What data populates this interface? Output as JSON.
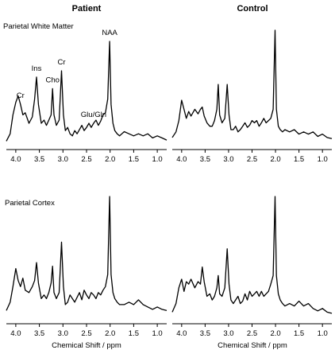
{
  "figure": {
    "column_titles": [
      "Patient",
      "Control"
    ],
    "row_labels": [
      "Parietal White Matter",
      "Parietal Cortex"
    ],
    "xlabel": "Chemical Shift / ppm",
    "ink_color": "#000000"
  },
  "chart_data": [
    {
      "type": "line",
      "panel": "Patient / Parietal White Matter",
      "xlabel": "",
      "xlim": [
        4.2,
        0.8
      ],
      "x_reversed": true,
      "x_ticks": [
        "4.0",
        "3.5",
        "3.0",
        "2.5",
        "2.0",
        "1.5",
        "1.0"
      ],
      "peak_labels": [
        {
          "text": "Cr",
          "x": 3.9
        },
        {
          "text": "Ins",
          "x": 3.56
        },
        {
          "text": "Cho",
          "x": 3.22
        },
        {
          "text": "Cr",
          "x": 3.03
        },
        {
          "text": "Glu/Gln",
          "x": 2.35
        },
        {
          "text": "NAA",
          "x": 2.01
        }
      ],
      "series": [
        {
          "x": [
            4.2,
            4.12,
            4.06,
            4.0,
            3.95,
            3.9,
            3.85,
            3.8,
            3.72,
            3.65,
            3.6,
            3.56,
            3.52,
            3.46,
            3.4,
            3.35,
            3.3,
            3.25,
            3.22,
            3.19,
            3.14,
            3.08,
            3.03,
            2.99,
            2.95,
            2.9,
            2.85,
            2.8,
            2.75,
            2.7,
            2.65,
            2.6,
            2.55,
            2.5,
            2.45,
            2.4,
            2.35,
            2.3,
            2.25,
            2.2,
            2.15,
            2.1,
            2.05,
            2.01,
            1.98,
            1.94,
            1.9,
            1.85,
            1.8,
            1.7,
            1.6,
            1.5,
            1.4,
            1.3,
            1.2,
            1.1,
            1.0,
            0.9,
            0.8
          ],
          "y": [
            0.05,
            0.12,
            0.3,
            0.42,
            0.48,
            0.4,
            0.3,
            0.32,
            0.22,
            0.28,
            0.45,
            0.66,
            0.4,
            0.22,
            0.25,
            0.2,
            0.25,
            0.3,
            0.55,
            0.3,
            0.2,
            0.25,
            0.72,
            0.3,
            0.15,
            0.18,
            0.12,
            0.1,
            0.15,
            0.12,
            0.16,
            0.2,
            0.15,
            0.18,
            0.22,
            0.18,
            0.22,
            0.25,
            0.2,
            0.24,
            0.3,
            0.32,
            0.45,
            1.0,
            0.4,
            0.22,
            0.15,
            0.12,
            0.1,
            0.14,
            0.12,
            0.1,
            0.12,
            0.1,
            0.12,
            0.08,
            0.1,
            0.08,
            0.06
          ]
        }
      ]
    },
    {
      "type": "line",
      "panel": "Control / Parietal White Matter",
      "xlabel": "",
      "xlim": [
        4.2,
        0.8
      ],
      "x_reversed": true,
      "x_ticks": [
        "4.0",
        "3.5",
        "3.0",
        "2.5",
        "2.0",
        "1.5",
        "1.0"
      ],
      "peak_labels": [],
      "series": [
        {
          "x": [
            4.2,
            4.12,
            4.06,
            4.0,
            3.95,
            3.9,
            3.85,
            3.8,
            3.72,
            3.65,
            3.6,
            3.56,
            3.52,
            3.46,
            3.4,
            3.35,
            3.3,
            3.25,
            3.22,
            3.19,
            3.14,
            3.08,
            3.03,
            2.99,
            2.95,
            2.9,
            2.85,
            2.8,
            2.75,
            2.7,
            2.65,
            2.6,
            2.55,
            2.5,
            2.45,
            2.4,
            2.35,
            2.3,
            2.25,
            2.2,
            2.15,
            2.1,
            2.05,
            2.01,
            1.98,
            1.94,
            1.9,
            1.85,
            1.8,
            1.7,
            1.6,
            1.5,
            1.4,
            1.3,
            1.2,
            1.1,
            1.0,
            0.9,
            0.8
          ],
          "y": [
            0.05,
            0.1,
            0.2,
            0.38,
            0.3,
            0.22,
            0.28,
            0.24,
            0.3,
            0.26,
            0.3,
            0.32,
            0.24,
            0.18,
            0.15,
            0.15,
            0.2,
            0.3,
            0.52,
            0.25,
            0.18,
            0.22,
            0.52,
            0.25,
            0.12,
            0.12,
            0.15,
            0.1,
            0.12,
            0.15,
            0.18,
            0.14,
            0.16,
            0.2,
            0.18,
            0.2,
            0.15,
            0.18,
            0.22,
            0.18,
            0.2,
            0.22,
            0.3,
            1.0,
            0.3,
            0.15,
            0.12,
            0.1,
            0.12,
            0.1,
            0.12,
            0.08,
            0.1,
            0.08,
            0.1,
            0.06,
            0.08,
            0.05,
            0.04
          ]
        }
      ]
    },
    {
      "type": "line",
      "panel": "Patient / Parietal Cortex",
      "xlabel": "Chemical Shift / ppm",
      "xlim": [
        4.2,
        0.8
      ],
      "x_reversed": true,
      "x_ticks": [
        "4.0",
        "3.5",
        "3.0",
        "2.5",
        "2.0",
        "1.5",
        "1.0"
      ],
      "peak_labels": [],
      "series": [
        {
          "x": [
            4.2,
            4.12,
            4.06,
            4.0,
            3.95,
            3.9,
            3.85,
            3.8,
            3.72,
            3.65,
            3.6,
            3.56,
            3.52,
            3.46,
            3.4,
            3.35,
            3.3,
            3.25,
            3.22,
            3.19,
            3.14,
            3.08,
            3.03,
            2.99,
            2.95,
            2.9,
            2.85,
            2.8,
            2.75,
            2.7,
            2.65,
            2.6,
            2.55,
            2.5,
            2.45,
            2.4,
            2.35,
            2.3,
            2.25,
            2.2,
            2.15,
            2.1,
            2.05,
            2.01,
            1.98,
            1.94,
            1.9,
            1.85,
            1.8,
            1.7,
            1.6,
            1.5,
            1.4,
            1.3,
            1.2,
            1.1,
            1.0,
            0.9,
            0.8
          ],
          "y": [
            0.05,
            0.12,
            0.25,
            0.4,
            0.3,
            0.25,
            0.32,
            0.22,
            0.2,
            0.25,
            0.3,
            0.45,
            0.28,
            0.15,
            0.18,
            0.15,
            0.2,
            0.28,
            0.42,
            0.2,
            0.15,
            0.2,
            0.62,
            0.25,
            0.1,
            0.12,
            0.18,
            0.15,
            0.12,
            0.16,
            0.2,
            0.14,
            0.22,
            0.18,
            0.15,
            0.2,
            0.18,
            0.15,
            0.2,
            0.18,
            0.22,
            0.25,
            0.35,
            1.0,
            0.35,
            0.2,
            0.15,
            0.12,
            0.1,
            0.1,
            0.12,
            0.1,
            0.14,
            0.1,
            0.08,
            0.06,
            0.08,
            0.06,
            0.05
          ]
        }
      ]
    },
    {
      "type": "line",
      "panel": "Control / Parietal Cortex",
      "xlabel": "Chemical Shift / ppm",
      "xlim": [
        4.2,
        0.8
      ],
      "x_reversed": true,
      "x_ticks": [
        "4.0",
        "3.5",
        "3.0",
        "2.5",
        "2.0",
        "1.5",
        "1.0"
      ],
      "peak_labels": [],
      "series": [
        {
          "x": [
            4.2,
            4.12,
            4.06,
            4.0,
            3.95,
            3.9,
            3.85,
            3.8,
            3.72,
            3.65,
            3.6,
            3.56,
            3.52,
            3.46,
            3.4,
            3.35,
            3.3,
            3.25,
            3.22,
            3.19,
            3.14,
            3.08,
            3.03,
            2.99,
            2.95,
            2.9,
            2.85,
            2.8,
            2.75,
            2.7,
            2.65,
            2.6,
            2.55,
            2.5,
            2.45,
            2.4,
            2.35,
            2.3,
            2.25,
            2.2,
            2.15,
            2.1,
            2.05,
            2.01,
            1.98,
            1.94,
            1.9,
            1.85,
            1.8,
            1.7,
            1.6,
            1.5,
            1.4,
            1.3,
            1.2,
            1.1,
            1.0,
            0.9,
            0.8
          ],
          "y": [
            0.05,
            0.12,
            0.25,
            0.32,
            0.22,
            0.3,
            0.28,
            0.32,
            0.25,
            0.3,
            0.28,
            0.42,
            0.3,
            0.18,
            0.2,
            0.15,
            0.18,
            0.25,
            0.35,
            0.2,
            0.18,
            0.25,
            0.57,
            0.28,
            0.15,
            0.12,
            0.15,
            0.18,
            0.12,
            0.14,
            0.2,
            0.15,
            0.22,
            0.18,
            0.2,
            0.22,
            0.18,
            0.22,
            0.18,
            0.2,
            0.22,
            0.28,
            0.35,
            1.0,
            0.35,
            0.2,
            0.15,
            0.12,
            0.1,
            0.12,
            0.1,
            0.14,
            0.1,
            0.12,
            0.08,
            0.06,
            0.08,
            0.05,
            0.04
          ]
        }
      ]
    }
  ]
}
